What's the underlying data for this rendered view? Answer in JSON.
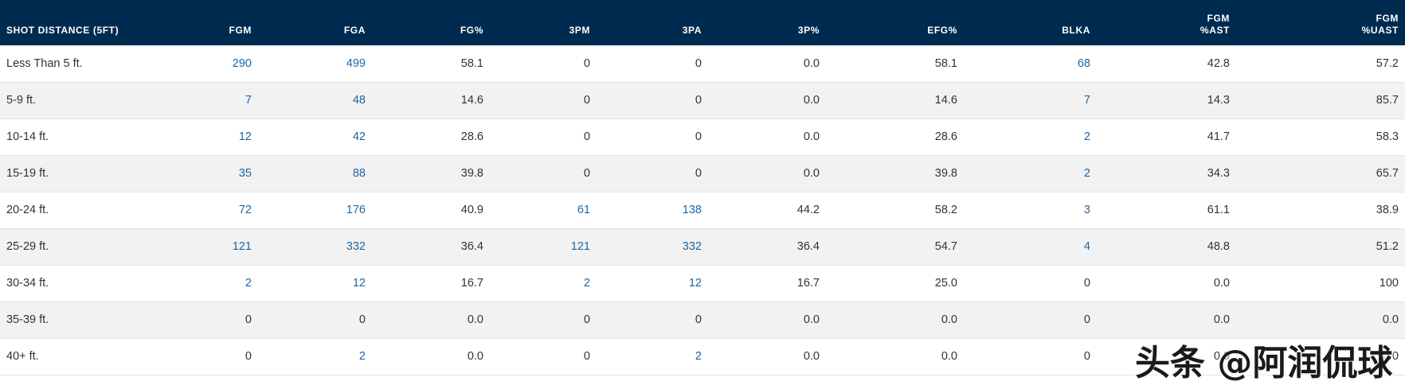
{
  "colors": {
    "header_bg": "#002b51",
    "link": "#1d66a6",
    "text": "#333333",
    "stripe": "#f2f2f2"
  },
  "table": {
    "columns": [
      {
        "key": "dist",
        "label": "SHOT DISTANCE (5FT)",
        "sub": ""
      },
      {
        "key": "fgm",
        "label": "FGM",
        "sub": ""
      },
      {
        "key": "fga",
        "label": "FGA",
        "sub": ""
      },
      {
        "key": "fgp",
        "label": "FG%",
        "sub": ""
      },
      {
        "key": "tpm",
        "label": "3PM",
        "sub": ""
      },
      {
        "key": "tpa",
        "label": "3PA",
        "sub": ""
      },
      {
        "key": "tpp",
        "label": "3P%",
        "sub": ""
      },
      {
        "key": "efg",
        "label": "EFG%",
        "sub": ""
      },
      {
        "key": "blka",
        "label": "BLKA",
        "sub": ""
      },
      {
        "key": "ast",
        "label": "FGM",
        "sub": "%AST"
      },
      {
        "key": "uast",
        "label": "FGM",
        "sub": "%UAST"
      }
    ],
    "rows": [
      [
        "Less Than 5 ft.",
        "290",
        "499",
        "58.1",
        "0",
        "0",
        "0.0",
        "58.1",
        "68",
        "42.8",
        "57.2"
      ],
      [
        "5-9 ft.",
        "7",
        "48",
        "14.6",
        "0",
        "0",
        "0.0",
        "14.6",
        "7",
        "14.3",
        "85.7"
      ],
      [
        "10-14 ft.",
        "12",
        "42",
        "28.6",
        "0",
        "0",
        "0.0",
        "28.6",
        "2",
        "41.7",
        "58.3"
      ],
      [
        "15-19 ft.",
        "35",
        "88",
        "39.8",
        "0",
        "0",
        "0.0",
        "39.8",
        "2",
        "34.3",
        "65.7"
      ],
      [
        "20-24 ft.",
        "72",
        "176",
        "40.9",
        "61",
        "138",
        "44.2",
        "58.2",
        "3",
        "61.1",
        "38.9"
      ],
      [
        "25-29 ft.",
        "121",
        "332",
        "36.4",
        "121",
        "332",
        "36.4",
        "54.7",
        "4",
        "48.8",
        "51.2"
      ],
      [
        "30-34 ft.",
        "2",
        "12",
        "16.7",
        "2",
        "12",
        "16.7",
        "25.0",
        "0",
        "0.0",
        "100"
      ],
      [
        "35-39 ft.",
        "0",
        "0",
        "0.0",
        "0",
        "0",
        "0.0",
        "0.0",
        "0",
        "0.0",
        "0.0"
      ],
      [
        "40+ ft.",
        "0",
        "2",
        "0.0",
        "0",
        "2",
        "0.0",
        "0.0",
        "0",
        "0.0",
        "0.0"
      ]
    ]
  },
  "watermark": "头条 @阿润侃球"
}
